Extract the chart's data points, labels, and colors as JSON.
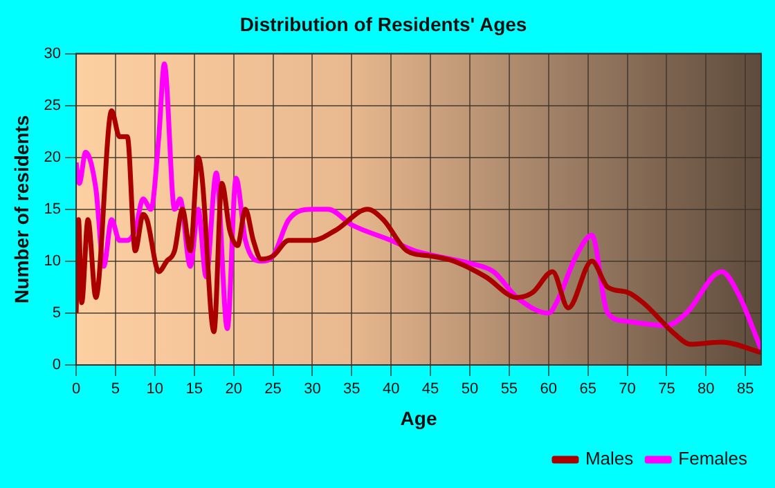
{
  "chart_data": {
    "type": "line",
    "title": "Distribution of Residents' Ages",
    "xlabel": "Age",
    "ylabel": "Number of residents",
    "xlim": [
      0,
      87
    ],
    "xticks": [
      0,
      5,
      10,
      15,
      20,
      25,
      30,
      35,
      40,
      45,
      50,
      55,
      60,
      65,
      70,
      75,
      80,
      85
    ],
    "ylim": [
      0,
      30
    ],
    "yticks": [
      0,
      5,
      10,
      15,
      20,
      25,
      30
    ],
    "grid": true,
    "legend": "bottom right",
    "marker": "none",
    "line_style": "solid",
    "series": [
      {
        "name": "Males",
        "color": "#aa0000",
        "x": [
          0,
          0.3,
          0.7,
          1.5,
          2.5,
          4.5,
          5.5,
          6.5,
          7.5,
          8.5,
          9,
          10.5,
          11.5,
          12.5,
          13.5,
          14.5,
          15.5,
          16,
          17.5,
          18.5,
          19.5,
          20.5,
          21.5,
          22.5,
          23.5,
          25,
          27,
          30,
          33,
          37,
          39,
          42,
          45,
          48,
          52,
          56,
          58,
          60.5,
          62.5,
          65.5,
          67.5,
          70,
          72,
          76,
          78,
          82,
          87
        ],
        "values": [
          5,
          14,
          6,
          14,
          6.5,
          24.5,
          22,
          22,
          11,
          14.5,
          14,
          9,
          10,
          11,
          15,
          11,
          20,
          18,
          3.2,
          17.5,
          13,
          11.5,
          15,
          12,
          10.2,
          10.5,
          12,
          12,
          13,
          15,
          14,
          11,
          10.5,
          10,
          8.5,
          6.5,
          7,
          9,
          5.5,
          10,
          7.5,
          7,
          6,
          3,
          2,
          2.2,
          1.2
        ]
      },
      {
        "name": "Females",
        "color": "#ff00ff",
        "x": [
          0,
          0.4,
          1.2,
          2.5,
          3.5,
          4.5,
          5.5,
          6.5,
          7.5,
          8.5,
          9.5,
          10.5,
          11.2,
          12.5,
          13.2,
          14.5,
          15.5,
          16.5,
          17.8,
          19.2,
          20.3,
          21.5,
          23.5,
          25,
          27,
          30,
          32,
          35,
          40,
          43,
          47,
          50,
          53,
          56,
          60,
          61,
          63.5,
          65.5,
          67.5,
          70,
          75,
          77.5,
          82,
          84,
          87
        ],
        "values": [
          19.5,
          17.5,
          20.5,
          17,
          9.5,
          14,
          12,
          12,
          13,
          16,
          15,
          22,
          29,
          15,
          16,
          9.5,
          15,
          8.5,
          18.5,
          3.5,
          18,
          12,
          10,
          10.5,
          14,
          15,
          15,
          13.5,
          12,
          11,
          10.3,
          9.8,
          9,
          6.5,
          5,
          6,
          10.5,
          12.5,
          5,
          4.2,
          3.8,
          5,
          9,
          7,
          1.5
        ]
      }
    ]
  }
}
